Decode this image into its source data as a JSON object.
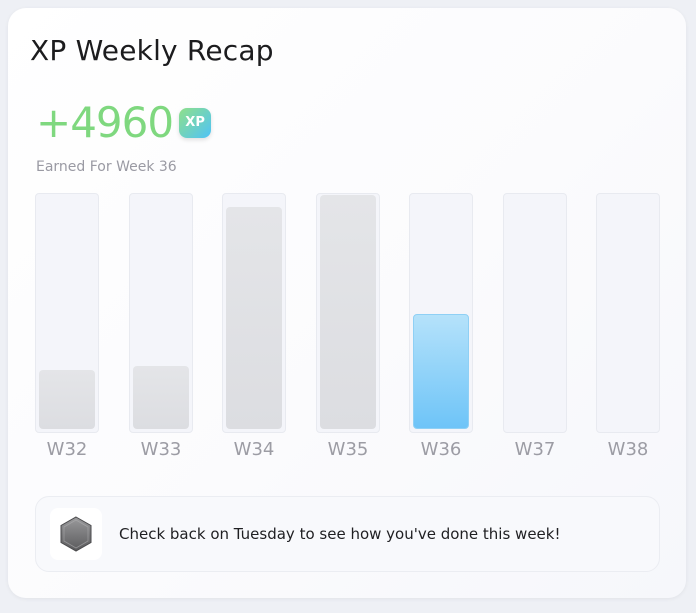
{
  "card": {
    "title": "XP Weekly Recap",
    "xp_amount": "+4960",
    "xp_badge": "XP",
    "subtitle": "Earned For Week 36"
  },
  "colors": {
    "xp_green": "#7fd87f",
    "current_bar": "#6ec4f8",
    "past_bar": "#dcdde1",
    "track": "#f4f5fa"
  },
  "weeks": [
    {
      "label": "W32",
      "level": 0.25,
      "current": false
    },
    {
      "label": "W33",
      "level": 0.27,
      "current": false
    },
    {
      "label": "W34",
      "level": 0.95,
      "current": false
    },
    {
      "label": "W35",
      "level": 1.0,
      "current": false
    },
    {
      "label": "W36",
      "level": 0.49,
      "current": true
    },
    {
      "label": "W37",
      "level": 0,
      "current": false
    },
    {
      "label": "W38",
      "level": 0,
      "current": false
    }
  ],
  "notice": {
    "icon": "hexagon-badge-icon",
    "text": "Check back on Tuesday to see how you've done this week!"
  }
}
